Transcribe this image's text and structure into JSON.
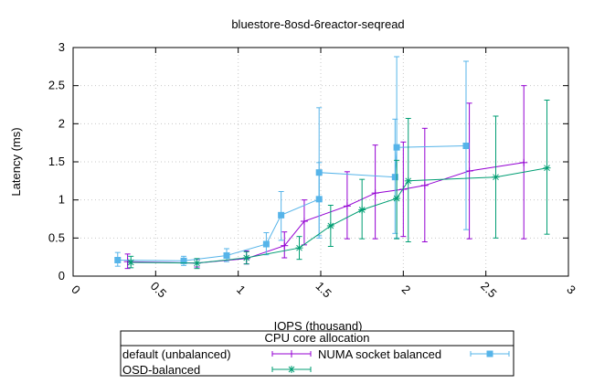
{
  "chart_data": {
    "type": "line",
    "title": "bluestore-8osd-6reactor-seqread",
    "xlabel": "IOPS (thousand)",
    "ylabel": "Latency (ms)",
    "xlim": [
      0,
      3
    ],
    "ylim": [
      0,
      3
    ],
    "x_ticks": [
      "0",
      "0.5",
      "1",
      "1.5",
      "2",
      "2.5",
      "3"
    ],
    "y_ticks": [
      "0",
      "0.5",
      "1",
      "1.5",
      "2",
      "2.5",
      "3"
    ],
    "grid": true,
    "legend": {
      "title": "CPU core allocation",
      "placement": "bottom-center"
    },
    "series": [
      {
        "name": "default (unbalanced)",
        "color": "#9400d3",
        "marker": "plus",
        "points": [
          {
            "x": 0.33,
            "y": 0.19,
            "ylow": 0.1,
            "yhigh": 0.29
          },
          {
            "x": 0.75,
            "y": 0.17,
            "ylow": 0.12,
            "yhigh": 0.22
          },
          {
            "x": 1.05,
            "y": 0.23,
            "ylow": 0.16,
            "yhigh": 0.33
          },
          {
            "x": 1.28,
            "y": 0.4,
            "ylow": 0.24,
            "yhigh": 0.58
          },
          {
            "x": 1.4,
            "y": 0.72,
            "ylow": 0.41,
            "yhigh": 1.0
          },
          {
            "x": 1.66,
            "y": 0.92,
            "ylow": 0.49,
            "yhigh": 1.37
          },
          {
            "x": 1.83,
            "y": 1.09,
            "ylow": 0.49,
            "yhigh": 1.72
          },
          {
            "x": 2.0,
            "y": 1.14,
            "ylow": 0.52,
            "yhigh": 1.76
          },
          {
            "x": 2.13,
            "y": 1.19,
            "ylow": 0.45,
            "yhigh": 1.94
          },
          {
            "x": 2.4,
            "y": 1.38,
            "ylow": 0.49,
            "yhigh": 2.27
          },
          {
            "x": 2.73,
            "y": 1.49,
            "ylow": 0.49,
            "yhigh": 2.5
          }
        ]
      },
      {
        "name": "NUMA socket balanced",
        "color": "#56b4e9",
        "marker": "square",
        "points": [
          {
            "x": 0.27,
            "y": 0.21,
            "ylow": 0.13,
            "yhigh": 0.31
          },
          {
            "x": 0.67,
            "y": 0.2,
            "ylow": 0.14,
            "yhigh": 0.26
          },
          {
            "x": 0.93,
            "y": 0.27,
            "ylow": 0.19,
            "yhigh": 0.36
          },
          {
            "x": 1.17,
            "y": 0.42,
            "ylow": 0.28,
            "yhigh": 0.57
          },
          {
            "x": 1.26,
            "y": 0.8,
            "ylow": 0.47,
            "yhigh": 1.11
          },
          {
            "x": 1.49,
            "y": 1.01,
            "ylow": 0.53,
            "yhigh": 1.49
          },
          {
            "x": 1.49,
            "y": 1.36,
            "ylow": 0.5,
            "yhigh": 2.21
          },
          {
            "x": 1.95,
            "y": 1.3,
            "ylow": 0.56,
            "yhigh": 2.06
          },
          {
            "x": 1.96,
            "y": 1.69,
            "ylow": 0.5,
            "yhigh": 2.88
          },
          {
            "x": 2.38,
            "y": 1.71,
            "ylow": 0.61,
            "yhigh": 2.82
          }
        ]
      },
      {
        "name": "OSD-balanced",
        "color": "#009e73",
        "marker": "star",
        "points": [
          {
            "x": 0.35,
            "y": 0.18,
            "ylow": 0.11,
            "yhigh": 0.26
          },
          {
            "x": 0.75,
            "y": 0.17,
            "ylow": 0.1,
            "yhigh": 0.23
          },
          {
            "x": 1.05,
            "y": 0.24,
            "ylow": 0.16,
            "yhigh": 0.32
          },
          {
            "x": 1.37,
            "y": 0.37,
            "ylow": 0.22,
            "yhigh": 0.52
          },
          {
            "x": 1.56,
            "y": 0.66,
            "ylow": 0.39,
            "yhigh": 0.93
          },
          {
            "x": 1.75,
            "y": 0.87,
            "ylow": 0.49,
            "yhigh": 1.27
          },
          {
            "x": 1.96,
            "y": 1.02,
            "ylow": 0.49,
            "yhigh": 1.52
          },
          {
            "x": 2.03,
            "y": 1.25,
            "ylow": 0.45,
            "yhigh": 2.07
          },
          {
            "x": 2.56,
            "y": 1.3,
            "ylow": 0.5,
            "yhigh": 2.1
          },
          {
            "x": 2.87,
            "y": 1.42,
            "ylow": 0.55,
            "yhigh": 2.31
          }
        ]
      }
    ]
  }
}
